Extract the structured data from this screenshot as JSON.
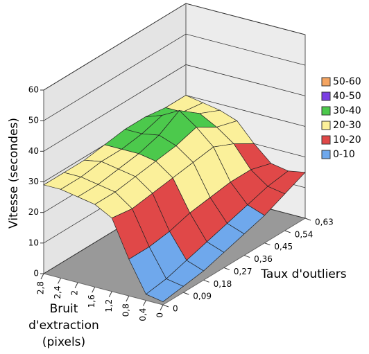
{
  "chart_data": {
    "type": "surface",
    "x_label": [
      "Bruit",
      "d'extraction",
      "(pixels)"
    ],
    "y_label": "Taux d'outliers",
    "z_label": "Vitesse (secondes)",
    "x": [
      0,
      0.4,
      0.8,
      1.2,
      1.6,
      2,
      2.4,
      2.8
    ],
    "y": [
      0,
      0.09,
      0.18,
      0.27,
      0.36,
      0.45,
      0.54,
      0.63
    ],
    "z": [
      [
        1,
        2,
        3,
        5,
        7,
        9,
        12,
        15
      ],
      [
        2,
        3,
        5,
        7,
        9,
        11,
        13,
        14
      ],
      [
        12,
        12,
        13,
        15,
        16,
        17,
        17,
        15
      ],
      [
        24,
        23,
        24,
        25,
        26,
        27,
        24,
        20
      ],
      [
        27,
        27,
        28,
        29,
        30,
        32,
        28,
        26
      ],
      [
        28,
        28,
        29,
        30,
        32,
        36,
        31,
        28
      ],
      [
        29,
        29,
        30,
        30,
        31,
        33,
        30,
        29
      ],
      [
        29,
        29,
        29,
        30,
        31,
        31,
        30,
        30
      ]
    ],
    "xlim": [
      0,
      2.8
    ],
    "xticks": [
      0,
      {
        "value": 0.4,
        "label": "0,4"
      },
      {
        "value": 0.8,
        "label": "0,8"
      },
      {
        "value": 1.2,
        "label": "1,2"
      },
      {
        "value": 1.6,
        "label": "1,6"
      },
      2,
      {
        "value": 2.4,
        "label": "2,4"
      },
      {
        "value": 2.8,
        "label": "2,8"
      }
    ],
    "ylim": [
      0,
      0.63
    ],
    "yticks": [
      0,
      {
        "value": 0.09,
        "label": "0,09"
      },
      {
        "value": 0.18,
        "label": "0,18"
      },
      {
        "value": 0.27,
        "label": "0,27"
      },
      {
        "value": 0.36,
        "label": "0,36"
      },
      {
        "value": 0.45,
        "label": "0,45"
      },
      {
        "value": 0.54,
        "label": "0,54"
      },
      {
        "value": 0.63,
        "label": "0,63"
      }
    ],
    "zlim": [
      0,
      60
    ],
    "zticks": [
      0,
      10,
      20,
      30,
      40,
      50,
      60
    ],
    "legend": [
      {
        "name": "50-60",
        "color": "#f4a460"
      },
      {
        "name": "40-50",
        "color": "#7b3fe4"
      },
      {
        "name": "30-40",
        "color": "#4cc94c"
      },
      {
        "name": "20-30",
        "color": "#fbf09a"
      },
      {
        "name": "10-20",
        "color": "#e04848"
      },
      {
        "name": "0-10",
        "color": "#6fa8ec"
      }
    ]
  }
}
